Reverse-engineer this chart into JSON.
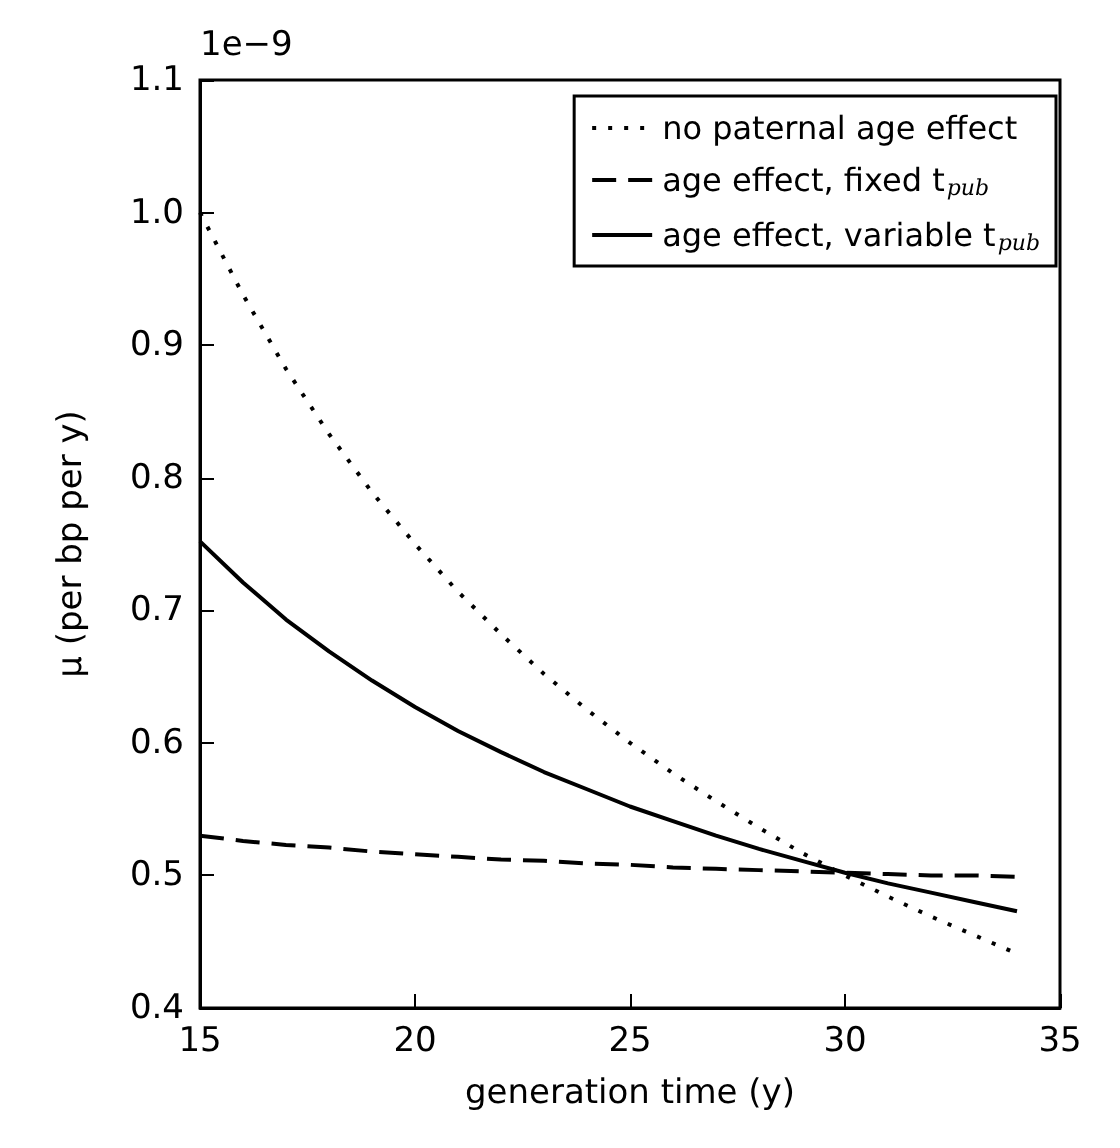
{
  "chart_data": {
    "type": "line",
    "xlabel": "generation time (y)",
    "ylabel": "μ (per bp per y)",
    "annotations": [
      "1e−9"
    ],
    "x": [
      15,
      16,
      17,
      18,
      19,
      20,
      21,
      22,
      23,
      24,
      25,
      26,
      27,
      28,
      29,
      30,
      31,
      32,
      33,
      34
    ],
    "series": [
      {
        "name": "no paternal age effect",
        "color": "#000000",
        "line_style": "dotted",
        "values": [
          1.0,
          0.938,
          0.882,
          0.833,
          0.789,
          0.75,
          0.714,
          0.682,
          0.652,
          0.625,
          0.6,
          0.577,
          0.556,
          0.536,
          0.517,
          0.5,
          0.484,
          0.469,
          0.455,
          0.441
        ]
      },
      {
        "name": "age effect, fixed t$_{pub}$",
        "color": "#000000",
        "line_style": "dashed",
        "values": [
          0.53,
          0.526,
          0.523,
          0.521,
          0.518,
          0.516,
          0.514,
          0.512,
          0.511,
          0.509,
          0.508,
          0.506,
          0.505,
          0.504,
          0.503,
          0.502,
          0.501,
          0.5,
          0.5,
          0.499
        ]
      },
      {
        "name": "age effect, variable t$_{pub}$",
        "color": "#000000",
        "line_style": "solid",
        "values": [
          0.752,
          0.721,
          0.693,
          0.669,
          0.647,
          0.627,
          0.609,
          0.593,
          0.578,
          0.565,
          0.552,
          0.541,
          0.53,
          0.52,
          0.511,
          0.502,
          0.494,
          0.487,
          0.48,
          0.473
        ]
      }
    ],
    "xlim": [
      15,
      35
    ],
    "xticks": [
      15,
      20,
      25,
      30,
      35
    ],
    "ylim": [
      0.4,
      1.1
    ],
    "yticks": [
      0.4,
      0.5,
      0.6,
      0.7,
      0.8,
      0.9,
      {
        "value": 1.0,
        "label": "1.0"
      },
      1.1
    ],
    "grid": false,
    "legend": "top right",
    "marker": "none"
  }
}
